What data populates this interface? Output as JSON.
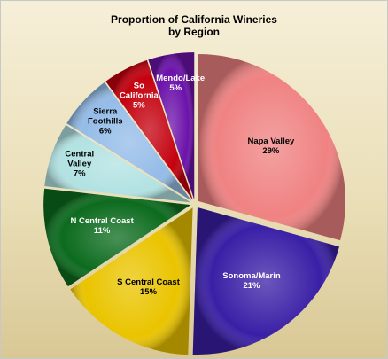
{
  "chart_data": {
    "type": "pie",
    "title": "Proportion of California Wineries",
    "subtitle": "by Region",
    "categories": [
      "Napa Valley",
      "Sonoma/Marin",
      "S Central Coast",
      "N Central Coast",
      "Central Valley",
      "Sierra Foothills",
      "So California",
      "Mendo/Lake"
    ],
    "values": [
      29,
      21,
      15,
      11,
      7,
      6,
      5,
      5
    ],
    "value_labels": [
      "29%",
      "21%",
      "15%",
      "11%",
      "7%",
      "6%",
      "5%",
      "5%"
    ],
    "colors": [
      "#f08282",
      "#3a1fa6",
      "#eac400",
      "#0c6b1e",
      "#b2e2e2",
      "#94bce8",
      "#c4000e",
      "#6c12aa"
    ]
  }
}
